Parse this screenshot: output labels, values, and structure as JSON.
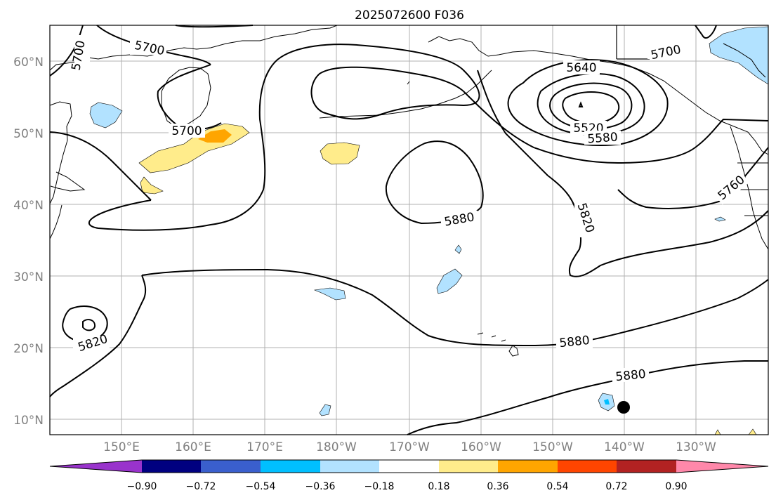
{
  "title": "2025072600 F036",
  "lat_labels": [
    "10°N",
    "20°N",
    "30°N",
    "40°N",
    "50°N",
    "60°N"
  ],
  "lon_labels": [
    "150°E",
    "160°E",
    "170°E",
    "180°W",
    "170°W",
    "160°W",
    "150°W",
    "140°W",
    "130°W"
  ],
  "contour_labels": [
    "5700",
    "5700",
    "5700",
    "5700",
    "5640",
    "5520",
    "5580",
    "5820",
    "5880",
    "5880",
    "5880",
    "5760",
    "5820"
  ],
  "colorbar": {
    "tick_labels": [
      "−0.90",
      "−0.72",
      "−0.54",
      "−0.36",
      "−0.18",
      "0.18",
      "0.36",
      "0.54",
      "0.72",
      "0.90"
    ],
    "colors": [
      "#9933cc",
      "#000080",
      "#3a5fcd",
      "#00bfff",
      "#b2e2ff",
      "#ffffff",
      "#ffec8b",
      "#ffa500",
      "#ff4500",
      "#b22222",
      "#ff88aa"
    ]
  }
}
